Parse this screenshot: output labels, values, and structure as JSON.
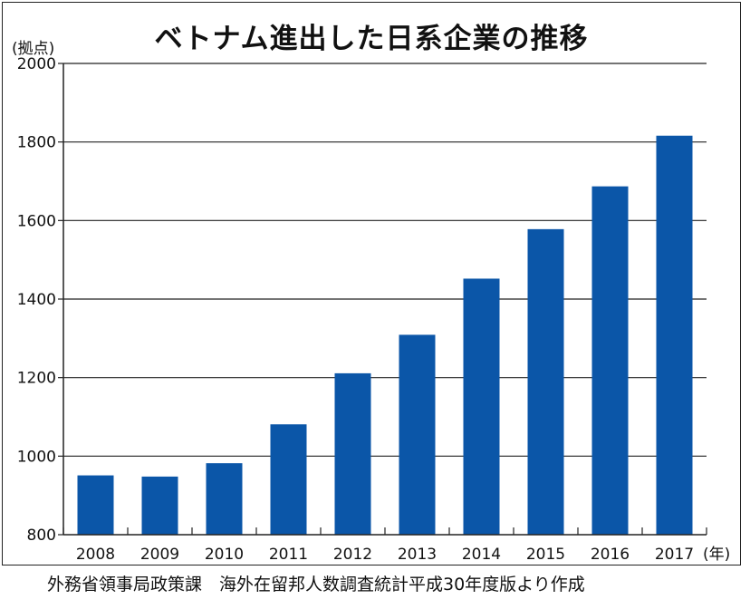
{
  "title": "ベトナム進出した日系企業の推移",
  "source": "外務省領事局政策課　海外在留邦人数調査統計平成30年度版より作成",
  "chart_data": {
    "type": "bar",
    "title": "ベトナム進出した日系企業の推移",
    "ylabel": "(拠点)",
    "xunit": "(年)",
    "ylim": [
      800,
      2000
    ],
    "yticks": [
      800,
      1000,
      1200,
      1400,
      1600,
      1800,
      2000
    ],
    "categories": [
      "2008",
      "2009",
      "2010",
      "2011",
      "2012",
      "2013",
      "2014",
      "2015",
      "2016",
      "2017"
    ],
    "values": [
      951,
      948,
      982,
      1081,
      1211,
      1309,
      1452,
      1578,
      1687,
      1816
    ],
    "bar_color": "#0b56a8",
    "grid": true
  }
}
